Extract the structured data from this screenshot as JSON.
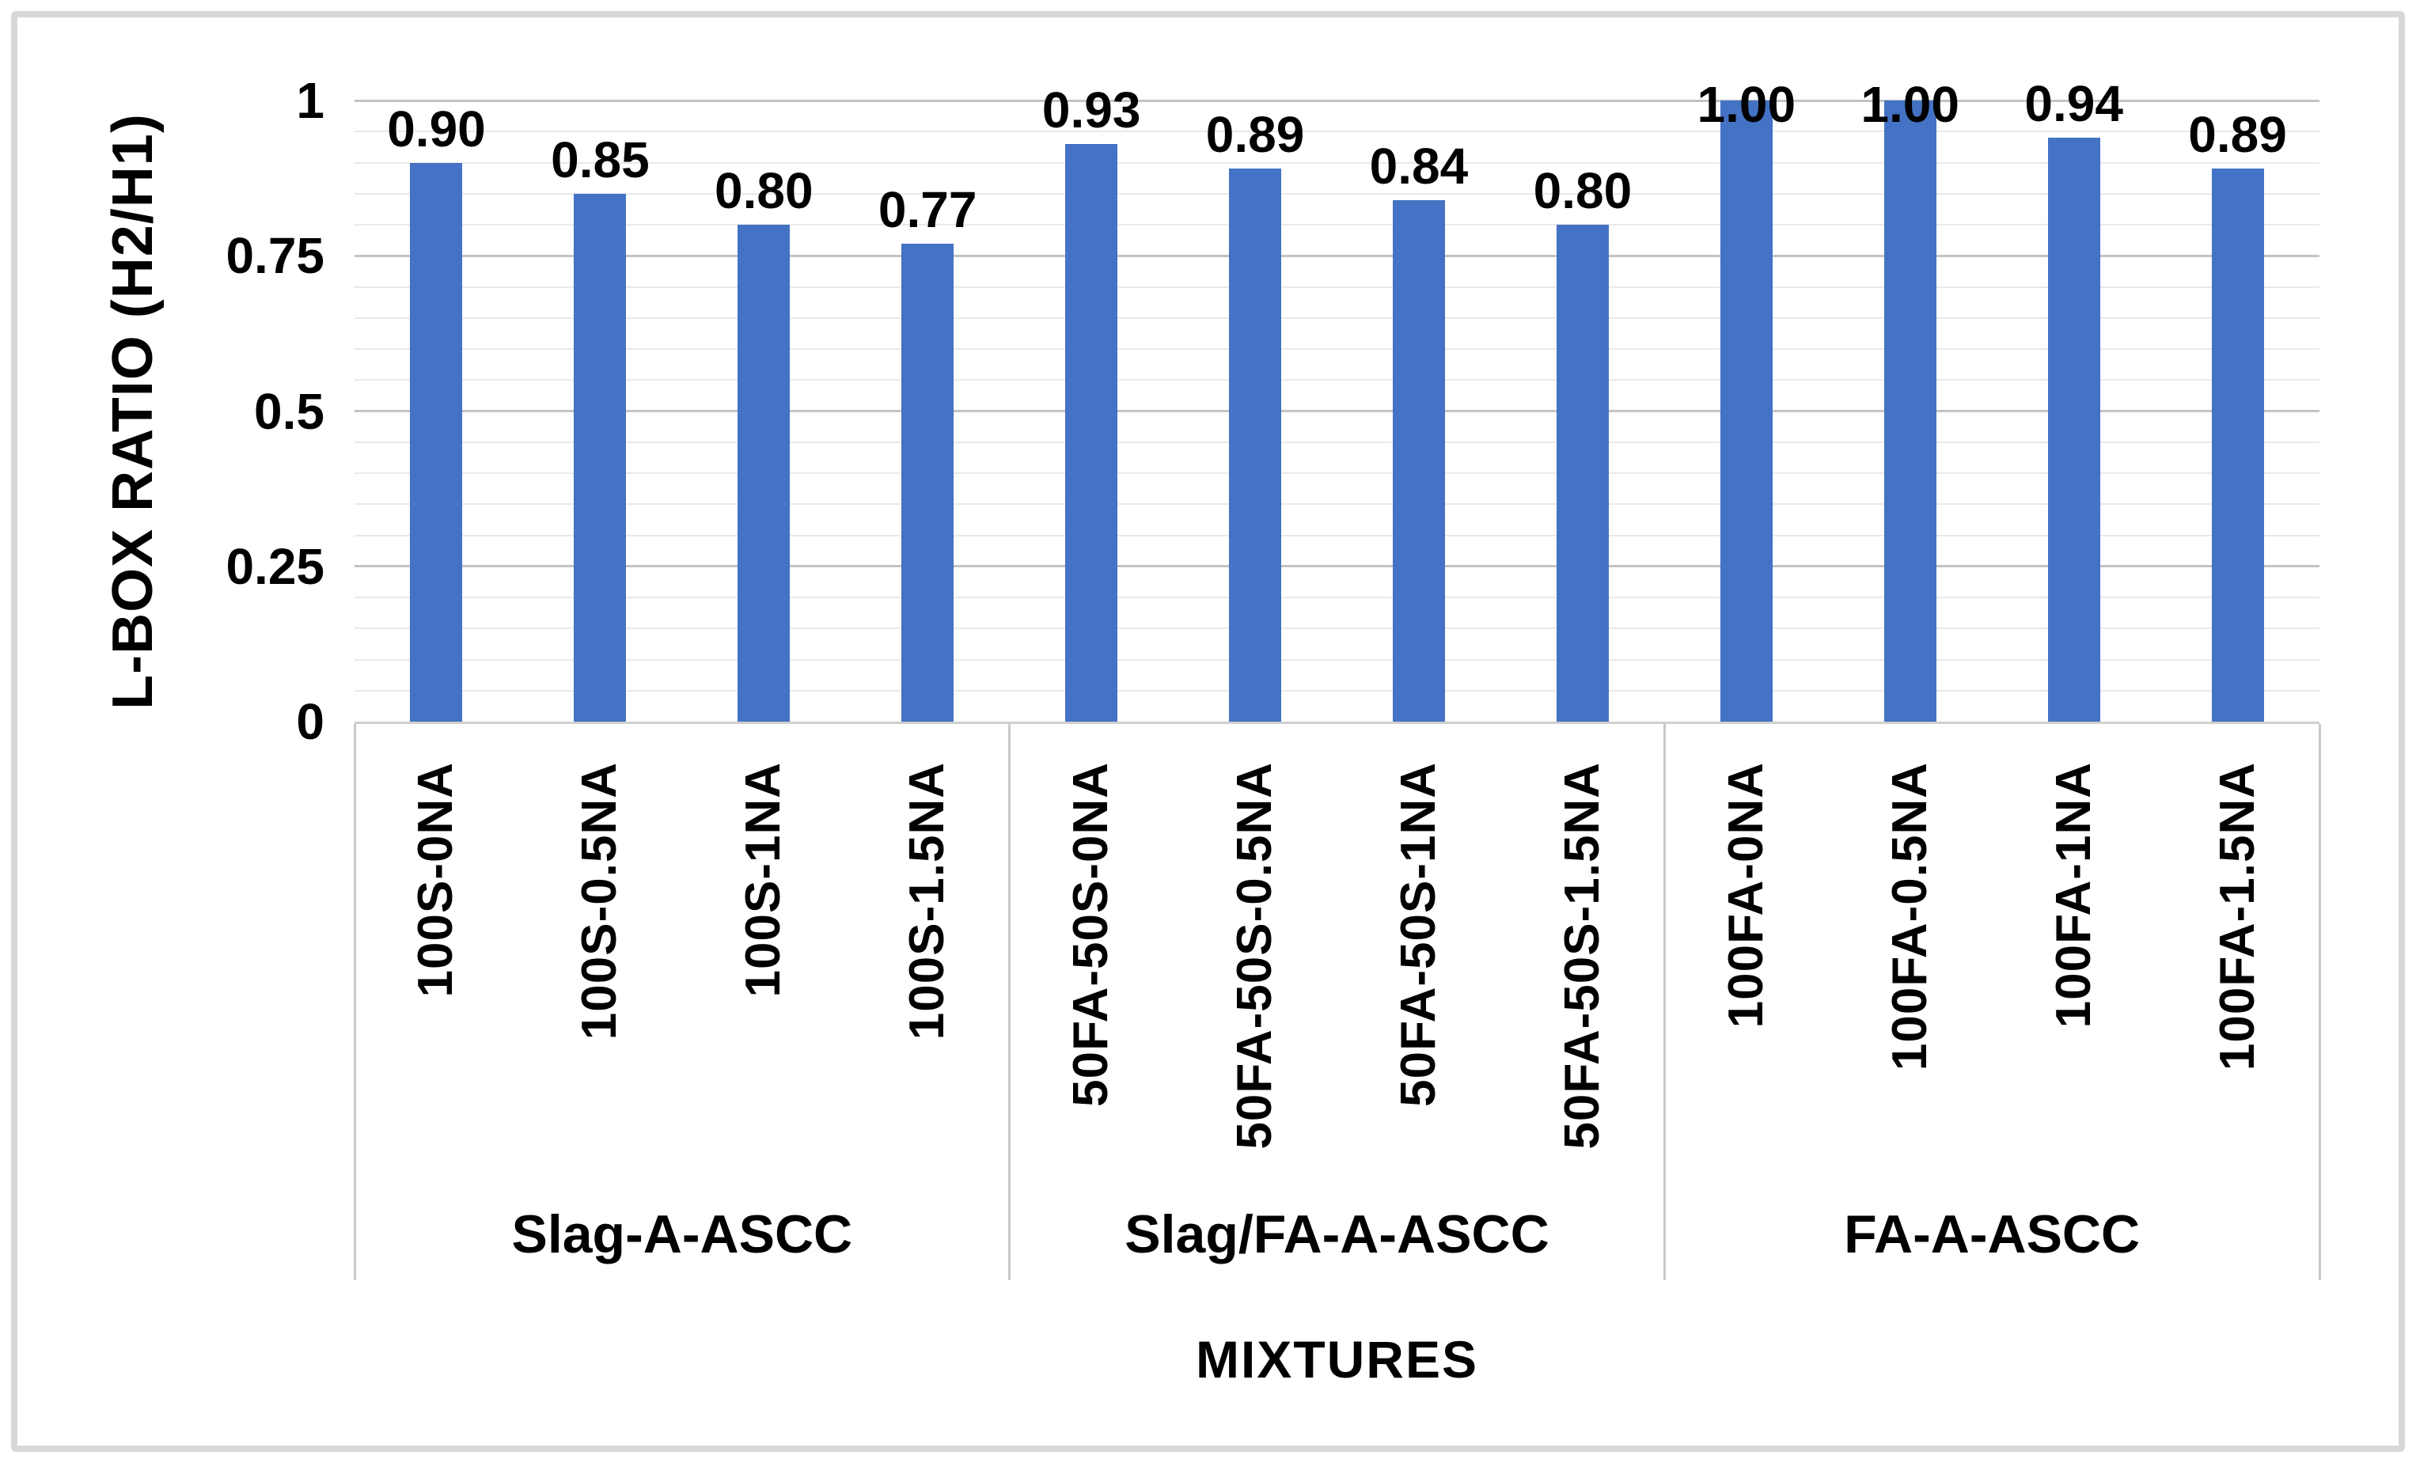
{
  "chart_data": {
    "type": "bar",
    "title": "",
    "ylabel": "L-BOX RATIO (H2/H1)",
    "xlabel": "MIXTURES",
    "ylim": [
      0,
      1
    ],
    "y_major_unit": 0.25,
    "y_minor_unit": 0.05,
    "grid": "horizontal major and minor gridlines on",
    "legend": "none",
    "y_ticks": [
      {
        "value": 0,
        "label": "0"
      },
      {
        "value": 0.25,
        "label": "0.25"
      },
      {
        "value": 0.5,
        "label": "0.5"
      },
      {
        "value": 0.75,
        "label": "0.75"
      },
      {
        "value": 1,
        "label": "1"
      }
    ],
    "groups": [
      {
        "label": "Slag-A-ASCC",
        "bars": [
          {
            "category": "100S-0NA",
            "value": 0.9,
            "data_label": "0.90"
          },
          {
            "category": "100S-0.5NA",
            "value": 0.85,
            "data_label": "0.85"
          },
          {
            "category": "100S-1NA",
            "value": 0.8,
            "data_label": "0.80"
          },
          {
            "category": "100S-1.5NA",
            "value": 0.77,
            "data_label": "0.77"
          }
        ]
      },
      {
        "label": "Slag/FA-A-ASCC",
        "bars": [
          {
            "category": "50FA-50S-0NA",
            "value": 0.93,
            "data_label": "0.93"
          },
          {
            "category": "50FA-50S-0.5NA",
            "value": 0.89,
            "data_label": "0.89"
          },
          {
            "category": "50FA-50S-1NA",
            "value": 0.84,
            "data_label": "0.84"
          },
          {
            "category": "50FA-50S-1.5NA",
            "value": 0.8,
            "data_label": "0.80"
          }
        ]
      },
      {
        "label": "FA-A-ASCC",
        "bars": [
          {
            "category": "100FA-0NA",
            "value": 1.0,
            "data_label": "1.00"
          },
          {
            "category": "100FA-0.5NA",
            "value": 1.0,
            "data_label": "1.00"
          },
          {
            "category": "100FA-1NA",
            "value": 0.94,
            "data_label": "0.94"
          },
          {
            "category": "100FA-1.5NA",
            "value": 0.89,
            "data_label": "0.89"
          }
        ]
      }
    ],
    "colors": {
      "bar": "#4472C4",
      "grid_major": "#C3C3C3",
      "grid_minor": "#E9E9E9",
      "axis_line": "#CFCFCF",
      "divider": "#C9C9C9",
      "frame_border": "#D8D8D8",
      "text": "#000000",
      "background": "#FFFFFF"
    }
  }
}
